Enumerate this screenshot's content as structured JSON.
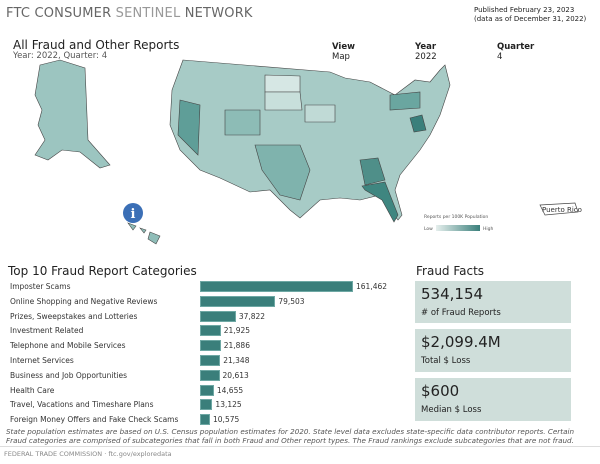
{
  "brand": {
    "part1": "FTC CONSUMER ",
    "part2": "SENTINEL",
    "part3": " NETWORK"
  },
  "published": {
    "line1": "Published February 23, 2023",
    "line2": "(data as of December 31, 2022)"
  },
  "report": {
    "title": "All Fraud and Other Reports",
    "subtitle": "Year: 2022, Quarter: 4"
  },
  "filters": {
    "view": {
      "label": "View",
      "value": "Map"
    },
    "year": {
      "label": "Year",
      "value": "2022"
    },
    "quarter": {
      "label": "Quarter",
      "value": "4"
    }
  },
  "map": {
    "legend_title": "Reports per 100K Population",
    "legend_low": "Low",
    "legend_high": "High",
    "puerto_rico": "Puerto Rico",
    "color_low": "#e6efed",
    "color_high": "#3a7f7b",
    "info_icon": "info-icon"
  },
  "chart_data": {
    "type": "bar",
    "title": "Top 10 Fraud Report Categories",
    "categories": [
      "Imposter Scams",
      "Online Shopping and Negative Reviews",
      "Prizes, Sweepstakes and Lotteries",
      "Investment Related",
      "Telephone and Mobile Services",
      "Internet Services",
      "Business and Job Opportunities",
      "Health Care",
      "Travel, Vacations and Timeshare Plans",
      "Foreign Money Offers and Fake Check Scams"
    ],
    "values": [
      161462,
      79503,
      37822,
      21925,
      21886,
      21348,
      20613,
      14655,
      13125,
      10575
    ],
    "labels": [
      "161,462",
      "79,503",
      "37,822",
      "21,925",
      "21,886",
      "21,348",
      "20,613",
      "14,655",
      "13,125",
      "10,575"
    ]
  },
  "facts": {
    "title": "Fraud Facts",
    "items": [
      {
        "value": "534,154",
        "label": "# of Fraud Reports"
      },
      {
        "value": "$2,099.4M",
        "label": "Total $ Loss"
      },
      {
        "value": "$600",
        "label": "Median $ Loss"
      }
    ]
  },
  "note": "State population estimates are based on U.S. Census population estimates for 2020. State level data excludes state-specific data contributor reports. Certain Fraud categories are comprised of subcategories that fall in both Fraud and Other report types. The Fraud rankings exclude subcategories that are not fraud.",
  "footer": "FEDERAL TRADE COMMISSION · ftc.gov/exploredata"
}
